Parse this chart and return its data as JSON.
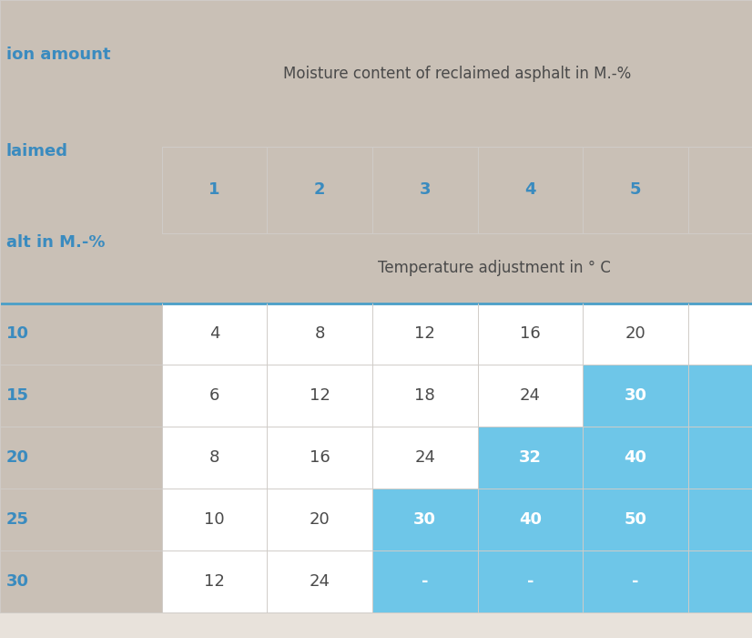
{
  "header_col_label_lines": [
    "ion amount",
    "laimed",
    "alt in M.-%"
  ],
  "header_main": "Moisture content of reclaimed asphalt in M.-%",
  "col_headers": [
    "1",
    "2",
    "3",
    "4",
    "5"
  ],
  "subheader": "Temperature adjustment in ° C",
  "row_labels": [
    "10",
    "15",
    "20",
    "25",
    "30"
  ],
  "data": [
    [
      "4",
      "8",
      "12",
      "16",
      "20"
    ],
    [
      "6",
      "12",
      "18",
      "24",
      "30"
    ],
    [
      "8",
      "16",
      "24",
      "32",
      "40"
    ],
    [
      "10",
      "20",
      "30",
      "40",
      "50"
    ],
    [
      "12",
      "24",
      "-",
      "-",
      "-"
    ]
  ],
  "highlight": [
    [
      false,
      false,
      false,
      false,
      false
    ],
    [
      false,
      false,
      false,
      false,
      true
    ],
    [
      false,
      false,
      false,
      true,
      true
    ],
    [
      false,
      false,
      true,
      true,
      true
    ],
    [
      false,
      false,
      true,
      true,
      true
    ]
  ],
  "colors": {
    "header_bg": "#c9c0b6",
    "cell_bg_white": "#ffffff",
    "cell_bg_blue": "#6ec6e8",
    "text_dark": "#4a4a4a",
    "text_blue": "#3a8bbf",
    "text_white": "#ffffff",
    "grid_light": "#d0ccc8",
    "separator_blue": "#4a9fc8",
    "fig_bg": "#e8e2db"
  },
  "figsize": [
    8.26,
    7.0
  ],
  "dpi": 100
}
